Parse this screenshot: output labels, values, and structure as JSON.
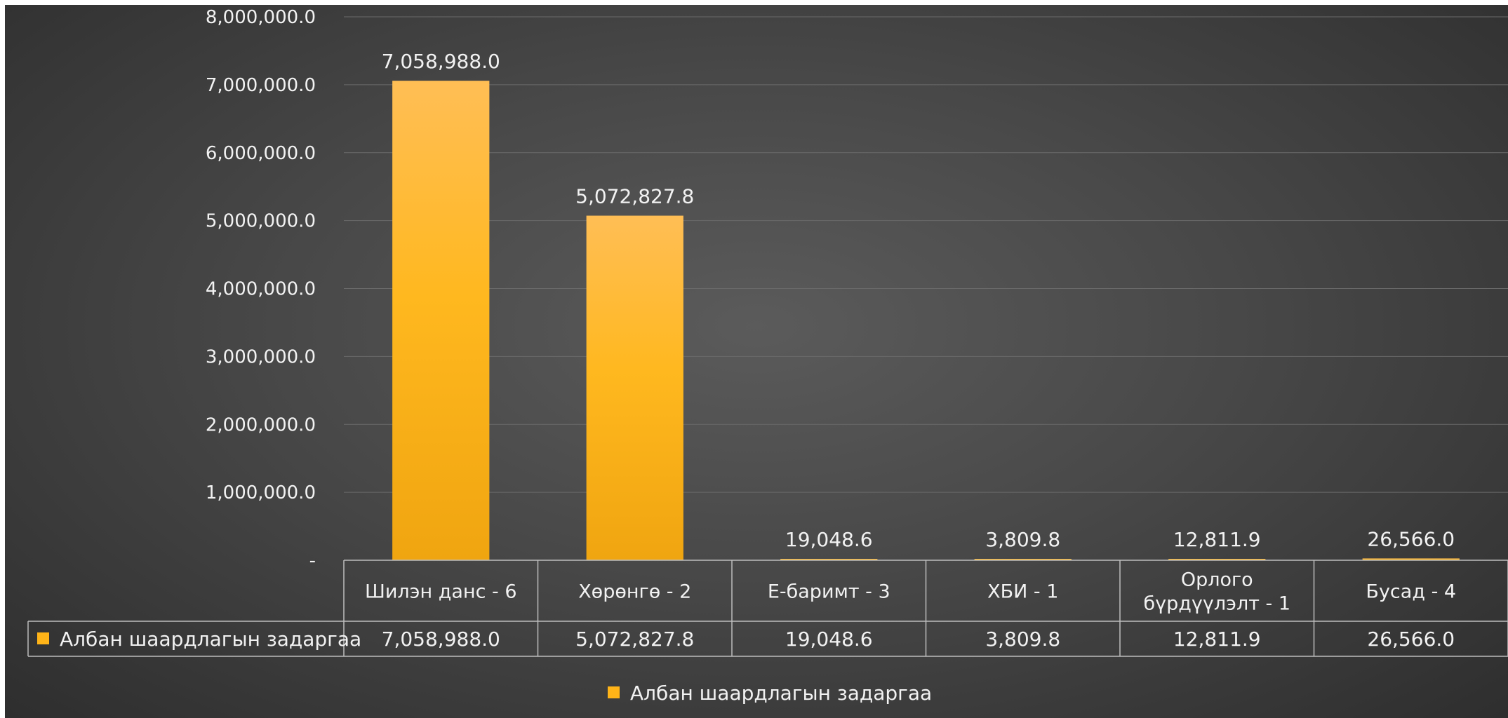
{
  "chart_data": {
    "type": "bar",
    "title": "",
    "xlabel": "",
    "ylabel": "",
    "ylim": [
      0,
      8000000
    ],
    "yticks": [
      0,
      1000000,
      2000000,
      3000000,
      4000000,
      5000000,
      6000000,
      7000000,
      8000000
    ],
    "ytick_labels": [
      "-",
      "1,000,000.0",
      "2,000,000.0",
      "3,000,000.0",
      "4,000,000.0",
      "5,000,000.0",
      "6,000,000.0",
      "7,000,000.0",
      "8,000,000.0"
    ],
    "grid": true,
    "legend_position": "bottom",
    "data_table": true,
    "categories": [
      [
        "Шилэн данс - 6"
      ],
      [
        "Хөрөнгө - 2"
      ],
      [
        "Е-баримт - 3"
      ],
      [
        "ХБИ - 1"
      ],
      [
        "Орлого",
        "бүрдүүлэлт - 1"
      ],
      [
        "Бусад - 4"
      ]
    ],
    "series": [
      {
        "name": "Албан шаардлагын задаргаа",
        "color": "#ffb418",
        "values": [
          7058988.0,
          5072827.8,
          19048.6,
          3809.8,
          12811.9,
          26566.0
        ],
        "value_labels": [
          "7,058,988.0",
          "5,072,827.8",
          "19,048.6",
          "3,809.8",
          "12,811.9",
          "26,566.0"
        ]
      }
    ]
  }
}
